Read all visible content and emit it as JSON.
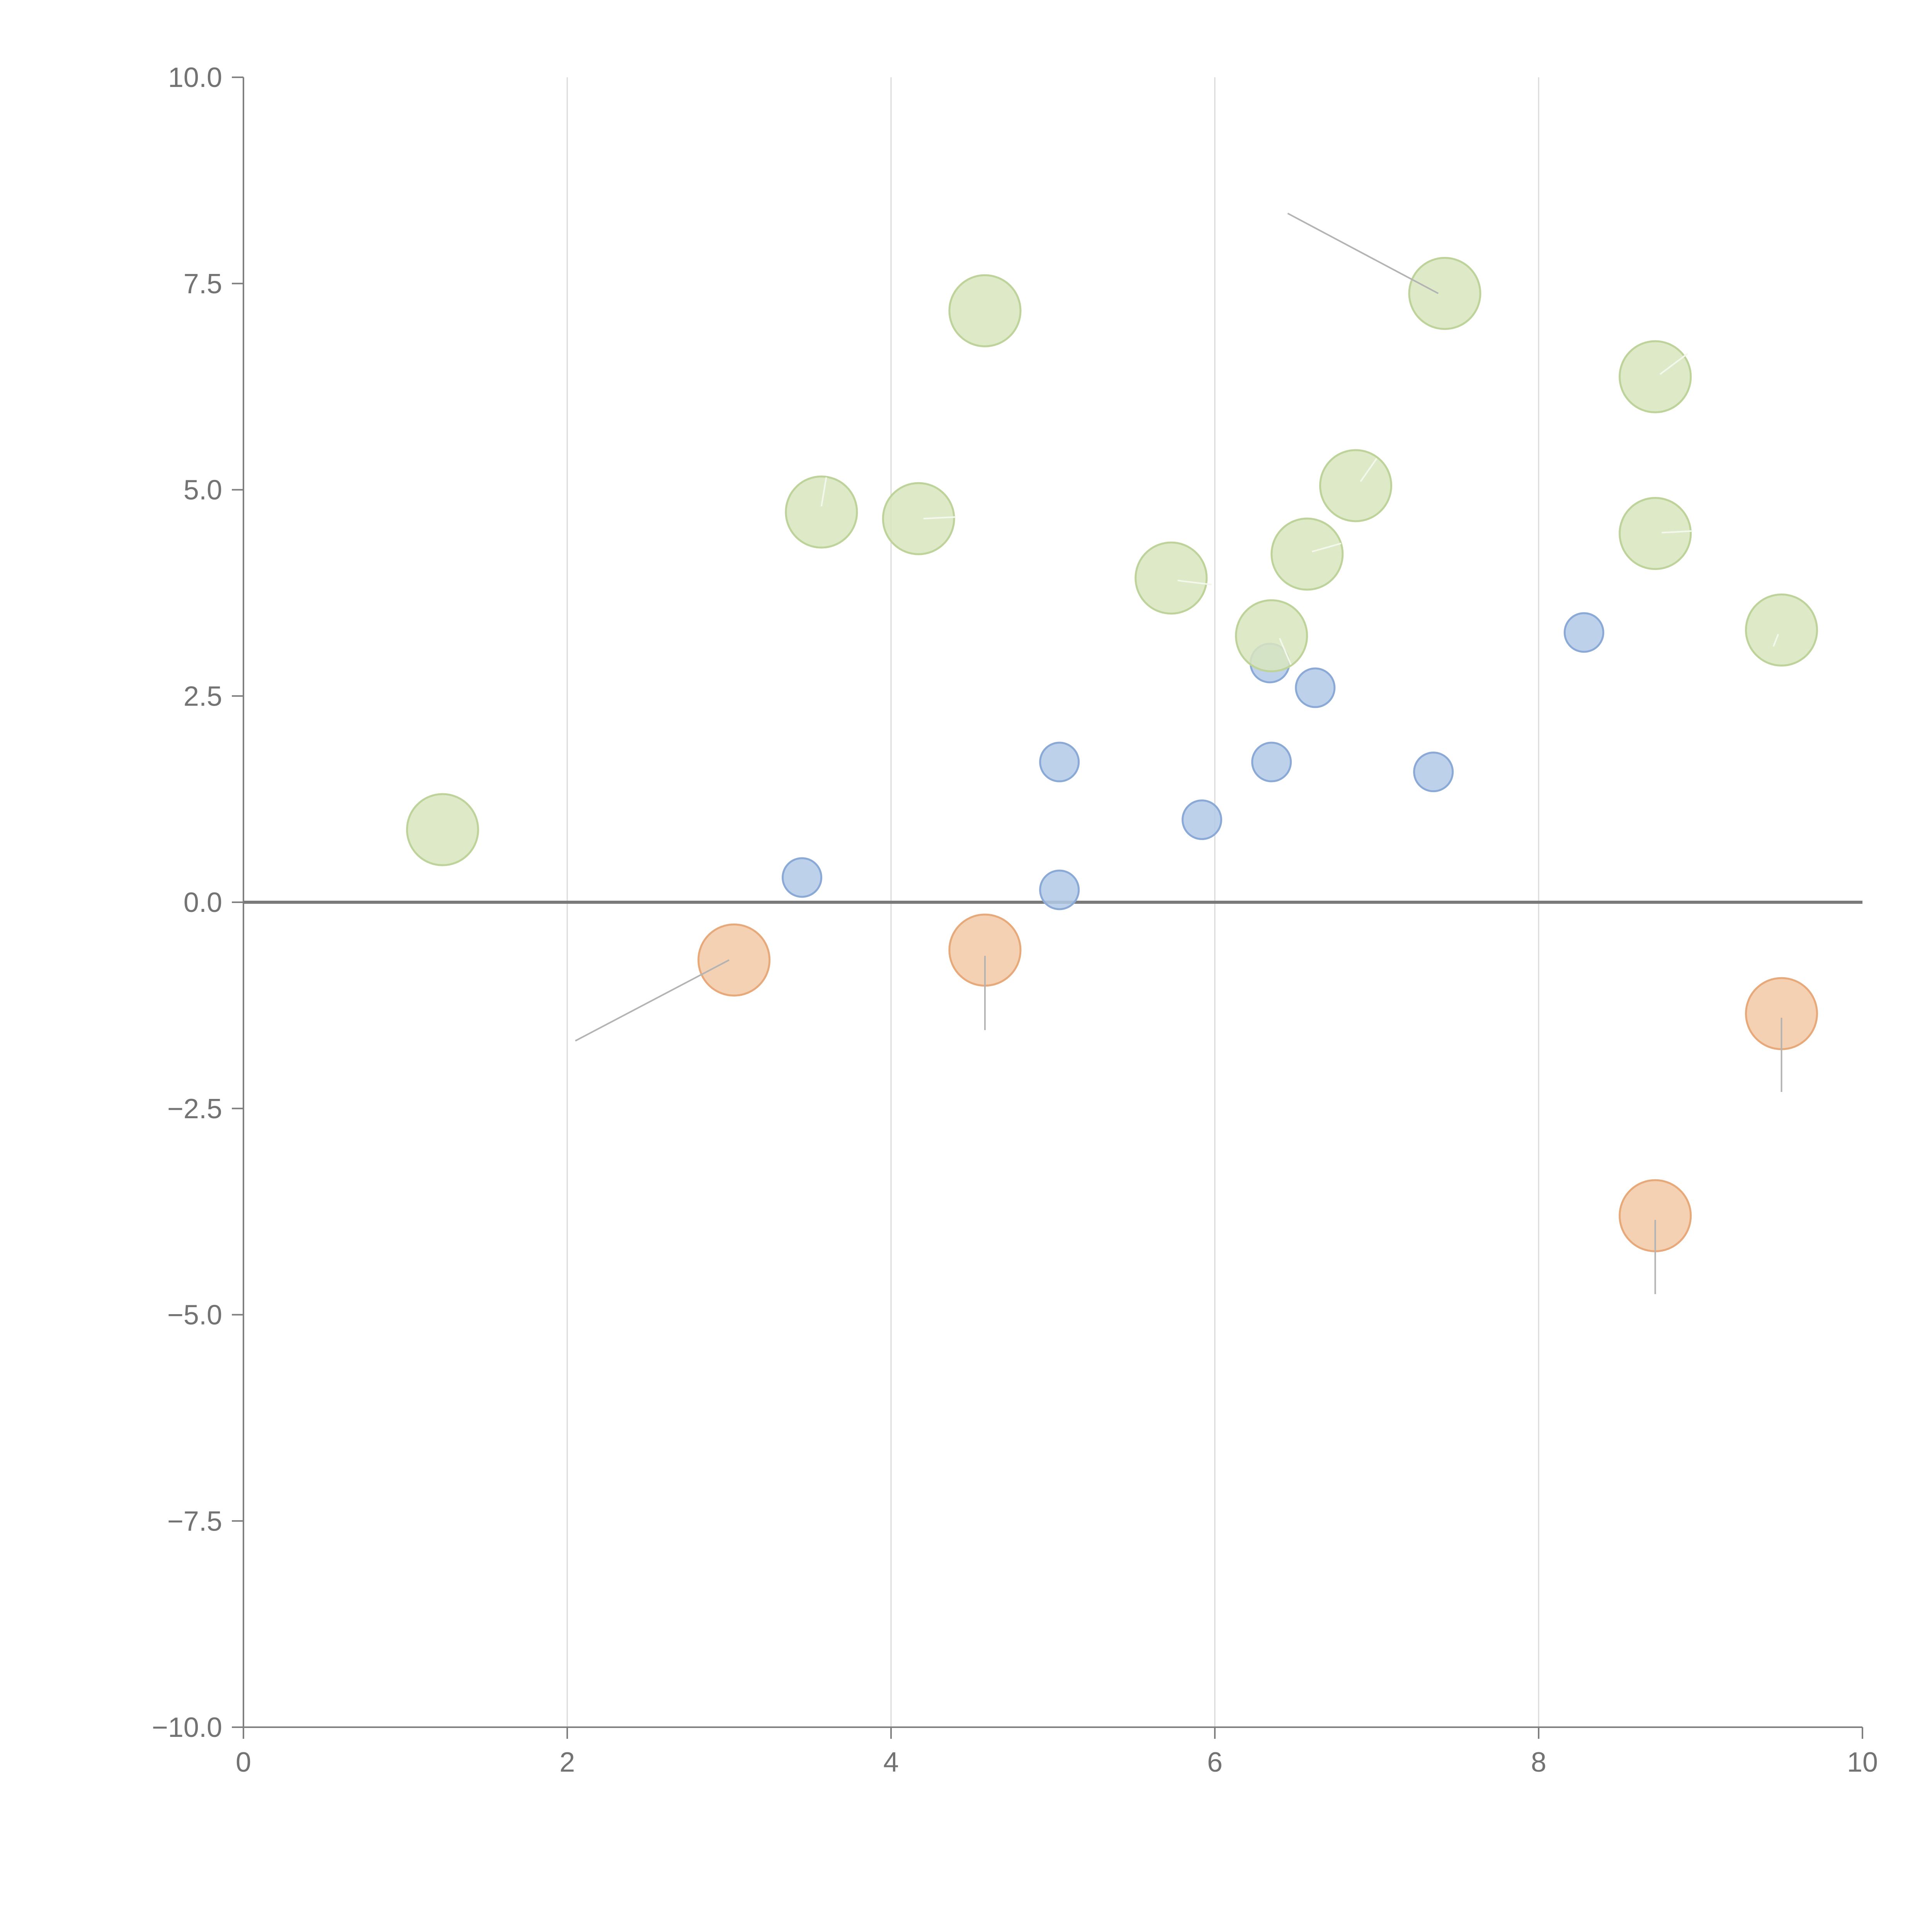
{
  "chart_data": {
    "type": "scatter",
    "title": "",
    "xlabel": "",
    "ylabel": "",
    "xlim": [
      0,
      10
    ],
    "ylim": [
      -10,
      10
    ],
    "x_ticks": [
      0,
      2,
      4,
      6,
      8,
      10
    ],
    "y_ticks": [
      10.0,
      7.5,
      5.0,
      2.5,
      0.0,
      -2.5,
      -5.0,
      -7.5,
      -10.0
    ],
    "x_tick_labels": [
      "0",
      "2",
      "4",
      "6",
      "8",
      "10"
    ],
    "y_tick_labels": [
      "10.0",
      "7.5",
      "5.0",
      "2.5",
      "0.0",
      "−2.5",
      "−5.0",
      "−7.5",
      "−10.0"
    ],
    "grid": {
      "vertical": true,
      "horizontal": false
    },
    "zero_line": true,
    "series": [
      {
        "color": "#b2c9e6",
        "edge": "#8aa9d6",
        "size": "small",
        "points": [
          {
            "x": 3.45,
            "y": 0.3
          },
          {
            "x": 5.04,
            "y": 0.15
          },
          {
            "x": 5.04,
            "y": 1.7
          },
          {
            "x": 5.92,
            "y": 1.0
          },
          {
            "x": 6.35,
            "y": 1.7
          },
          {
            "x": 6.34,
            "y": 2.9
          },
          {
            "x": 6.62,
            "y": 2.6
          },
          {
            "x": 7.35,
            "y": 1.58
          },
          {
            "x": 8.28,
            "y": 3.27
          }
        ]
      },
      {
        "color": "#d8e5be",
        "edge": "#bdd39a",
        "size": "large",
        "points": [
          {
            "x": 1.23,
            "y": 0.88
          },
          {
            "x": 3.57,
            "y": 4.73
          },
          {
            "x": 4.17,
            "y": 4.65
          },
          {
            "x": 4.58,
            "y": 7.17
          },
          {
            "x": 5.73,
            "y": 3.93
          },
          {
            "x": 6.35,
            "y": 3.23
          },
          {
            "x": 6.57,
            "y": 4.22
          },
          {
            "x": 6.87,
            "y": 5.05
          },
          {
            "x": 7.42,
            "y": 7.38
          },
          {
            "x": 8.72,
            "y": 6.37
          },
          {
            "x": 8.72,
            "y": 4.47
          },
          {
            "x": 9.5,
            "y": 3.3
          }
        ]
      },
      {
        "color": "#f2c9a6",
        "edge": "#e8a97a",
        "size": "large",
        "points": [
          {
            "x": 3.03,
            "y": -0.7
          },
          {
            "x": 4.58,
            "y": -0.58
          },
          {
            "x": 9.5,
            "y": -1.35
          },
          {
            "x": 8.72,
            "y": -3.8
          }
        ]
      }
    ],
    "leader_lines": [
      {
        "x1": 7.38,
        "y1": 7.38,
        "x2": 6.45,
        "y2": 8.35,
        "color": "#b3b3b3"
      },
      {
        "x1": 3.0,
        "y1": -0.7,
        "x2": 2.05,
        "y2": -1.68,
        "color": "#b3b3b3"
      },
      {
        "x1": 4.58,
        "y1": -0.65,
        "x2": 4.58,
        "y2": -1.55,
        "color": "#b3b3b3"
      },
      {
        "x1": 9.5,
        "y1": -1.4,
        "x2": 9.5,
        "y2": -2.3,
        "color": "#b3b3b3"
      },
      {
        "x1": 8.72,
        "y1": -3.85,
        "x2": 8.72,
        "y2": -4.75,
        "color": "#b3b3b3"
      },
      {
        "x1": 3.57,
        "y1": 4.8,
        "x2": 3.6,
        "y2": 5.15,
        "color": "#f4f7ec"
      },
      {
        "x1": 4.2,
        "y1": 4.65,
        "x2": 4.4,
        "y2": 4.67,
        "color": "#f4f7ec"
      },
      {
        "x1": 5.77,
        "y1": 3.9,
        "x2": 5.98,
        "y2": 3.85,
        "color": "#f4f7ec"
      },
      {
        "x1": 6.4,
        "y1": 3.2,
        "x2": 6.47,
        "y2": 2.88,
        "color": "#f4f7ec"
      },
      {
        "x1": 6.6,
        "y1": 4.25,
        "x2": 6.78,
        "y2": 4.35,
        "color": "#f4f7ec"
      },
      {
        "x1": 6.9,
        "y1": 5.1,
        "x2": 7.0,
        "y2": 5.38,
        "color": "#f4f7ec"
      },
      {
        "x1": 8.75,
        "y1": 6.4,
        "x2": 8.92,
        "y2": 6.65,
        "color": "#f4f7ec"
      },
      {
        "x1": 8.76,
        "y1": 4.48,
        "x2": 8.95,
        "y2": 4.5,
        "color": "#f4f7ec"
      },
      {
        "x1": 9.45,
        "y1": 3.1,
        "x2": 9.48,
        "y2": 3.25,
        "color": "#f4f7ec"
      }
    ]
  }
}
